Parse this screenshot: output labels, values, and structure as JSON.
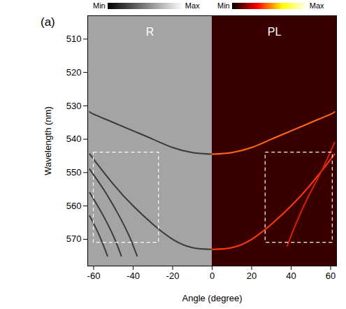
{
  "chart_data": {
    "type": "line",
    "panel_letter": "(a)",
    "x_label": "Angle (degree)",
    "y_label": "Wavelength (nm)",
    "xlim": [
      -63,
      63
    ],
    "xticks": [
      -60,
      -40,
      -20,
      0,
      20,
      40,
      60
    ],
    "ylim": [
      503,
      578
    ],
    "yticks": [
      510,
      520,
      530,
      540,
      550,
      560,
      570
    ],
    "grid": false,
    "colorbars": [
      {
        "labels": [
          "Min",
          "Max"
        ],
        "colors": [
          "#000000",
          "#ffffff"
        ]
      },
      {
        "labels": [
          "Min",
          "Max"
        ],
        "colors": [
          "#000000",
          "#ff0000",
          "#ffff00",
          "#ffffff"
        ]
      }
    ],
    "panels": [
      {
        "label": "R",
        "x_range": [
          -63,
          0
        ],
        "color": "#a4a4a4"
      },
      {
        "label": "PL",
        "x_range": [
          0,
          63
        ],
        "color": "#3a0000"
      }
    ],
    "boxes": [
      {
        "x_range": [
          -60,
          -27
        ],
        "y_range": [
          544,
          571
        ],
        "color": "#ffffff",
        "line_style": "dashed"
      },
      {
        "x_range": [
          27,
          61
        ],
        "y_range": [
          544,
          571
        ],
        "color": "#ffffff",
        "line_style": "dashed"
      }
    ],
    "series": [
      {
        "color": "#3a3a3a",
        "x": [
          -62,
          -60,
          -50,
          -40,
          -30,
          -20,
          -10,
          0
        ],
        "values": [
          531.8,
          532.5,
          535,
          537.5,
          540,
          542.5,
          544,
          544.5
        ]
      },
      {
        "color": "#3a3a3a",
        "x": [
          -62,
          -60,
          -50,
          -40,
          -30,
          -20,
          -10,
          0
        ],
        "values": [
          544.5,
          546,
          553.5,
          560,
          565.5,
          570,
          572.5,
          573
        ]
      },
      {
        "color": "#3a3a3a",
        "x": [
          -62,
          -55,
          -48,
          -42,
          -38
        ],
        "values": [
          549,
          555,
          562,
          569,
          575
        ]
      },
      {
        "color": "#3a3a3a",
        "x": [
          -62,
          -56,
          -50,
          -46
        ],
        "values": [
          556,
          562,
          569,
          575
        ]
      },
      {
        "color": "#3a3a3a",
        "x": [
          -62,
          -57,
          -53
        ],
        "values": [
          563,
          569,
          575
        ]
      },
      {
        "color": "#ff6a1a",
        "x": [
          0,
          10,
          20,
          30,
          40,
          50,
          60,
          62
        ],
        "values": [
          544.5,
          544,
          542.5,
          540,
          537.5,
          535,
          532.5,
          531.8
        ]
      },
      {
        "color": "#ff3a10",
        "x": [
          0,
          10,
          20,
          30,
          40,
          50,
          60,
          62
        ],
        "values": [
          573,
          572.5,
          570,
          565.5,
          560,
          553.5,
          546,
          544.5
        ]
      },
      {
        "color": "#d81e08",
        "x": [
          62,
          55,
          48,
          42,
          38
        ],
        "values": [
          541,
          550,
          558,
          566,
          572
        ]
      }
    ]
  }
}
